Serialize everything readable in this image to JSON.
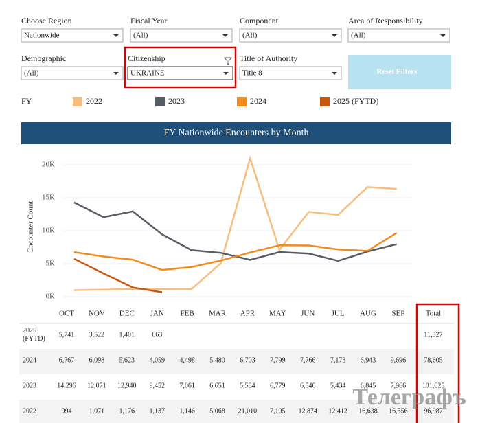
{
  "filters": [
    {
      "label": "Choose Region",
      "value": "Nationwide"
    },
    {
      "label": "Fiscal Year",
      "value": "(All)"
    },
    {
      "label": "Component",
      "value": "(All)"
    },
    {
      "label": "Area of Responsibility",
      "value": "(All)"
    },
    {
      "label": "Demographic",
      "value": "(All)"
    },
    {
      "label": "Citizenship",
      "value": "UKRAINE"
    },
    {
      "label": "Title of Authority",
      "value": "Title 8"
    }
  ],
  "reset_button": "Reset Filters",
  "legend_title": "FY",
  "chart_data": {
    "type": "line",
    "title": "FY Nationwide Encounters by Month",
    "y_label": "Encounter Count",
    "categories": [
      "OCT",
      "NOV",
      "DEC",
      "JAN",
      "FEB",
      "MAR",
      "APR",
      "MAY",
      "JUN",
      "JUL",
      "AUG",
      "SEP"
    ],
    "series": [
      {
        "name": "2022",
        "color": "#f6bd7e",
        "values": [
          994,
          1071,
          1176,
          1137,
          1146,
          5068,
          21010,
          7105,
          12874,
          12412,
          16638,
          16356
        ],
        "value_labels": [
          "994",
          "1,071",
          "1,176",
          "1,137",
          "1,146",
          "5,068",
          "21,010",
          "7,105",
          "12,874",
          "12,412",
          "16,638",
          "16,356"
        ]
      },
      {
        "name": "2023",
        "color": "#565c66",
        "values": [
          14296,
          12071,
          12940,
          9452,
          7061,
          6651,
          5584,
          6779,
          6546,
          5434,
          6845,
          7966
        ],
        "value_labels": [
          "14,296",
          "12,071",
          "12,940",
          "9,452",
          "7,061",
          "6,651",
          "5,584",
          "6,779",
          "6,546",
          "5,434",
          "6,845",
          "7,966"
        ]
      },
      {
        "name": "2024",
        "color": "#f28b1e",
        "values": [
          6767,
          6098,
          5623,
          4059,
          4498,
          5480,
          6703,
          7799,
          7766,
          7173,
          6943,
          9696
        ],
        "value_labels": [
          "6,767",
          "6,098",
          "5,623",
          "4,059",
          "4,498",
          "5,480",
          "6,703",
          "7,799",
          "7,766",
          "7,173",
          "6,943",
          "9,696"
        ]
      },
      {
        "name": "2025 (FYTD)",
        "color": "#c8560f",
        "values": [
          5741,
          3522,
          1401,
          663,
          null,
          null,
          null,
          null,
          null,
          null,
          null,
          null
        ],
        "value_labels": [
          "5,741",
          "3,522",
          "1,401",
          "663",
          null,
          null,
          null,
          null,
          null,
          null,
          null,
          null
        ]
      }
    ],
    "ylim": [
      0,
      22000
    ],
    "yticks": [
      {
        "value": 0,
        "label": "0K"
      },
      {
        "value": 5000,
        "label": "5K"
      },
      {
        "value": 10000,
        "label": "10K"
      },
      {
        "value": 15000,
        "label": "15K"
      },
      {
        "value": 20000,
        "label": "20K"
      }
    ],
    "grid": true
  },
  "table": {
    "total_header": "Total",
    "totals": [
      "96,987",
      "101,625",
      "78,605",
      "11,327"
    ]
  },
  "watermark": "Телеграфъ"
}
